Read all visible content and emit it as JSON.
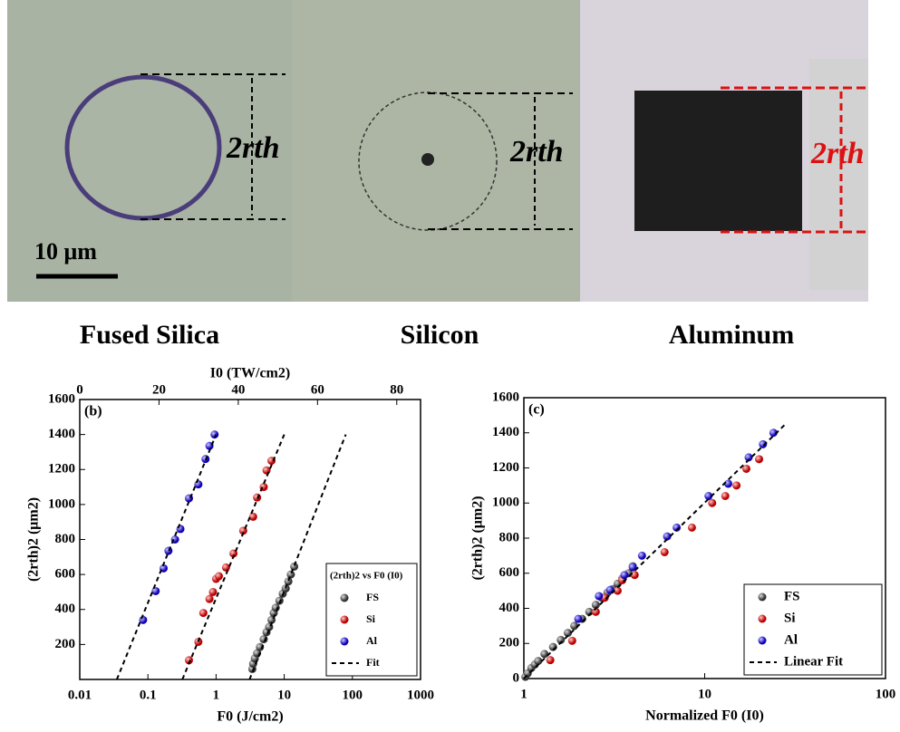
{
  "panels": [
    {
      "label": "Fused Silica",
      "dimension": "2rth",
      "scale_bar": "10 μm"
    },
    {
      "label": "Silicon",
      "dimension": "2rth"
    },
    {
      "label": "Aluminum",
      "dimension": "2rth"
    }
  ],
  "chart_data": [
    {
      "type": "scatter",
      "panel": "(b)",
      "xlabel": "F0 (J/cm2)",
      "ylabel": "(2rth)2 (μm2)",
      "x2label": "I0 (TW/cm2)",
      "xlog": true,
      "xlim": [
        0.01,
        1000
      ],
      "xticks": [
        0.01,
        0.1,
        1,
        10,
        100,
        1000
      ],
      "ylim": [
        0,
        1600
      ],
      "yticks": [
        200,
        400,
        600,
        800,
        1000,
        1200,
        1400,
        1600
      ],
      "x2lim": [
        0,
        86
      ],
      "x2ticks": [
        0,
        20,
        40,
        60,
        80
      ],
      "legend_title": "(2rth)2 vs F0 (I0)",
      "legend": "lower right",
      "series": [
        {
          "name": "FS",
          "type": "scatter",
          "color": "#555555",
          "x": [
            3.4,
            3.5,
            3.7,
            4,
            4.4,
            5,
            5.5,
            6,
            6.5,
            7,
            7.5,
            8.5,
            9.5,
            10.5,
            11.5,
            12.5,
            14
          ],
          "values": [
            60,
            90,
            120,
            150,
            185,
            230,
            270,
            300,
            340,
            380,
            410,
            450,
            490,
            520,
            560,
            600,
            645
          ]
        },
        {
          "name": "Si",
          "type": "scatter",
          "color": "#d83a3a",
          "x": [
            0.4,
            0.55,
            0.65,
            0.8,
            0.9,
            1,
            1.1,
            1.4,
            1.8,
            2.5,
            3.5,
            4,
            5,
            5.5,
            6.5
          ],
          "values": [
            110,
            215,
            380,
            460,
            500,
            575,
            590,
            640,
            720,
            850,
            930,
            1040,
            1100,
            1195,
            1250
          ]
        },
        {
          "name": "Al",
          "type": "scatter",
          "color": "#2f3fe0",
          "x": [
            0.085,
            0.13,
            0.17,
            0.2,
            0.25,
            0.3,
            0.4,
            0.55,
            0.7,
            0.8,
            0.95
          ],
          "values": [
            340,
            505,
            635,
            735,
            800,
            860,
            1035,
            1115,
            1260,
            1335,
            1400
          ]
        },
        {
          "name": "Fit",
          "type": "line",
          "color": "#000000",
          "x": [
            0.035,
            1
          ],
          "values": [
            0,
            1400
          ]
        },
        {
          "type": "line",
          "color": "#000000",
          "x": [
            0.32,
            10
          ],
          "values": [
            0,
            1400
          ]
        },
        {
          "type": "line",
          "color": "#000000",
          "x": [
            3.1,
            80
          ],
          "values": [
            0,
            1400
          ]
        }
      ]
    },
    {
      "type": "scatter",
      "panel": "(c)",
      "xlabel": "Normalized F0 (I0)",
      "ylabel": "(2rth)2 (μm2)",
      "xlog": true,
      "xlim": [
        1,
        100
      ],
      "xticks": [
        1,
        10,
        100
      ],
      "ylim": [
        0,
        1600
      ],
      "yticks": [
        0,
        200,
        400,
        600,
        800,
        1000,
        1200,
        1400,
        1600
      ],
      "legend": "lower right",
      "series": [
        {
          "name": "FS",
          "type": "scatter",
          "color": "#555555",
          "x": [
            1.02,
            1.05,
            1.1,
            1.15,
            1.2,
            1.3,
            1.45,
            1.6,
            1.75,
            1.9,
            2.1,
            2.3,
            2.5,
            2.7,
            2.9,
            3.1,
            3.3,
            3.5,
            3.8,
            4
          ],
          "values": [
            10,
            30,
            60,
            80,
            100,
            140,
            180,
            220,
            260,
            300,
            340,
            380,
            420,
            460,
            490,
            510,
            540,
            570,
            600,
            640
          ]
        },
        {
          "name": "Si",
          "type": "scatter",
          "color": "#d83a3a",
          "x": [
            1.4,
            1.85,
            2.5,
            2.8,
            3.3,
            3.5,
            4.1,
            6,
            8.5,
            11,
            13,
            15,
            17,
            20
          ],
          "values": [
            105,
            215,
            380,
            460,
            500,
            560,
            590,
            720,
            860,
            1000,
            1040,
            1100,
            1195,
            1250
          ]
        },
        {
          "name": "Al",
          "type": "scatter",
          "color": "#2f3fe0",
          "x": [
            2,
            2.6,
            3,
            3.6,
            4,
            4.5,
            6.2,
            7,
            10.5,
            13.5,
            17.5,
            21,
            24
          ],
          "values": [
            340,
            470,
            505,
            590,
            635,
            700,
            810,
            860,
            1040,
            1110,
            1260,
            1335,
            1400
          ]
        },
        {
          "name": "Linear Fit",
          "type": "line",
          "color": "#000000",
          "x": [
            1,
            28
          ],
          "values": [
            0,
            1450
          ]
        }
      ]
    }
  ]
}
